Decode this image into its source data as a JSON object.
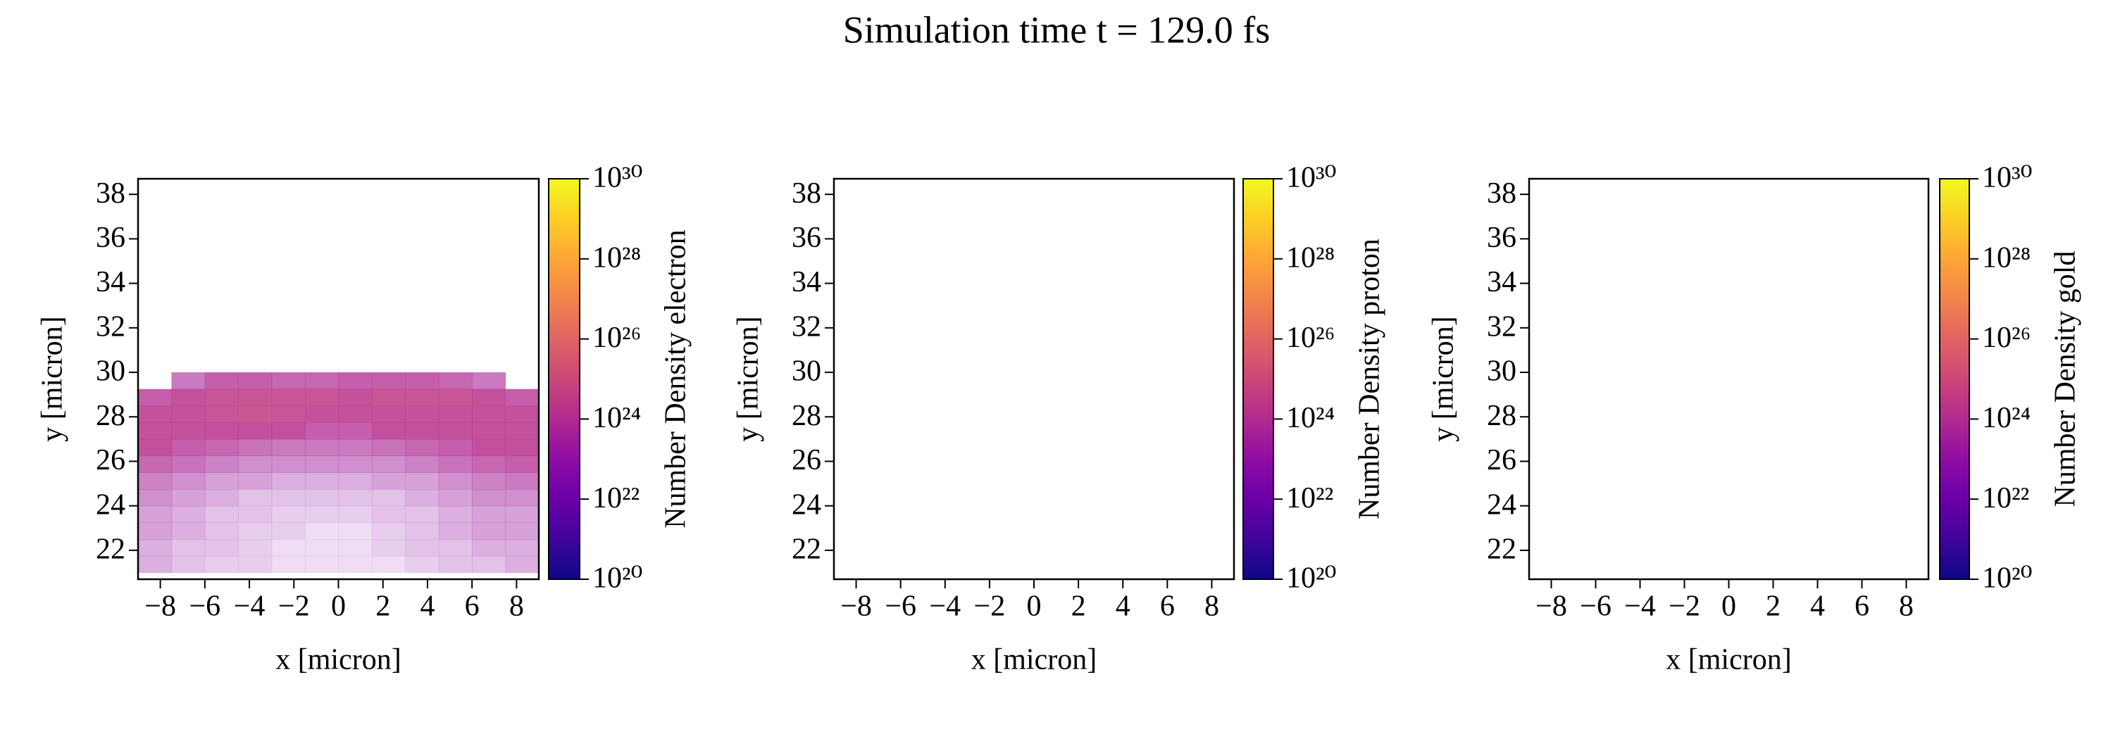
{
  "title": "Simulation time t = 129.0 fs",
  "chart_data": [
    {
      "type": "heatmap",
      "xlabel": "x [micron]",
      "ylabel": "y [micron]",
      "xlim": [
        -9,
        9
      ],
      "ylim": [
        20.7,
        38.7
      ],
      "xticks": [
        {
          "value": -8,
          "label": "−8"
        },
        {
          "value": -6,
          "label": "−6"
        },
        {
          "value": -4,
          "label": "−4"
        },
        {
          "value": -2,
          "label": "−2"
        },
        0,
        2,
        4,
        6,
        8
      ],
      "yticks": [
        22,
        24,
        26,
        28,
        30,
        32,
        34,
        36,
        38
      ],
      "colorbar": {
        "label": "Number Density electron",
        "scale": "log",
        "colormap": "plasma",
        "lim": [
          1e+20,
          1e+30
        ],
        "ticks": [
          {
            "value": 1e+20,
            "label": "10²⁰"
          },
          {
            "value": 1e+22,
            "label": "10²²"
          },
          {
            "value": 1e+24,
            "label": "10²⁴"
          },
          {
            "value": 1e+26,
            "label": "10²⁶"
          },
          {
            "value": 1e+28,
            "label": "10²⁸"
          },
          {
            "value": 1e+30,
            "label": "10³⁰"
          }
        ]
      },
      "xbins": [
        -9,
        -7.5,
        -6,
        -4.5,
        -3,
        -1.5,
        0,
        1.5,
        3,
        4.5,
        6,
        7.5,
        9
      ],
      "ybins": [
        21,
        21.75,
        22.5,
        23.25,
        24,
        24.75,
        25.5,
        26.25,
        27,
        27.75,
        28.5,
        29.25,
        30
      ],
      "z": [
        [
          1.5e+23,
          1e+23,
          8e+22,
          8e+22,
          6e+22,
          6e+22,
          6e+22,
          6e+22,
          8e+22,
          1e+23,
          1e+23,
          1.5e+23
        ],
        [
          1.5e+23,
          1e+23,
          1e+23,
          8e+22,
          6e+22,
          6e+22,
          6e+22,
          8e+22,
          1e+23,
          1e+23,
          1.5e+23,
          1.5e+23
        ],
        [
          2e+23,
          1.5e+23,
          1e+23,
          8e+22,
          8e+22,
          6e+22,
          6e+22,
          8e+22,
          1e+23,
          1.5e+23,
          2e+23,
          2e+23
        ],
        [
          2e+23,
          1.5e+23,
          1e+23,
          1e+23,
          8e+22,
          8e+22,
          8e+22,
          1e+23,
          1e+23,
          1.5e+23,
          2e+23,
          2e+23
        ],
        [
          3e+23,
          2e+23,
          1.5e+23,
          1e+23,
          1e+23,
          1e+23,
          1e+23,
          1e+23,
          1.5e+23,
          2e+23,
          3e+23,
          3e+23
        ],
        [
          4e+23,
          3e+23,
          2e+23,
          2e+23,
          1.5e+23,
          1.5e+23,
          1.5e+23,
          2e+23,
          2e+23,
          3e+23,
          4e+23,
          5e+23
        ],
        [
          8e+23,
          6e+23,
          4e+23,
          3e+23,
          3e+23,
          3e+23,
          3e+23,
          3e+23,
          4e+23,
          6e+23,
          8e+23,
          1e+24
        ],
        [
          1.5e+24,
          1e+24,
          8e+23,
          6e+23,
          5e+23,
          5e+23,
          5e+23,
          6e+23,
          8e+23,
          1e+24,
          1.5e+24,
          1.5e+24
        ],
        [
          2e+24,
          2e+24,
          1.5e+24,
          1.5e+24,
          1.5e+24,
          1e+24,
          1e+24,
          1.5e+24,
          1.5e+24,
          2e+24,
          2e+24,
          2e+24
        ],
        [
          2e+24,
          2e+24,
          3e+24,
          4e+24,
          3e+24,
          2e+24,
          2e+24,
          2e+24,
          2e+24,
          2e+24,
          2e+24,
          2e+24
        ],
        [
          1e+24,
          2e+24,
          3e+24,
          3e+24,
          3e+24,
          3e+24,
          2e+24,
          3e+24,
          3e+24,
          3e+24,
          2e+24,
          1e+24
        ],
        [
          null,
          5e+23,
          1e+24,
          1e+24,
          8e+23,
          8e+23,
          1e+24,
          1e+24,
          1e+24,
          8e+23,
          5e+23,
          null
        ]
      ]
    },
    {
      "type": "heatmap",
      "xlabel": "x [micron]",
      "ylabel": "y [micron]",
      "xlim": [
        -9,
        9
      ],
      "ylim": [
        20.7,
        38.7
      ],
      "xticks": [
        {
          "value": -8,
          "label": "−8"
        },
        {
          "value": -6,
          "label": "−6"
        },
        {
          "value": -4,
          "label": "−4"
        },
        {
          "value": -2,
          "label": "−2"
        },
        0,
        2,
        4,
        6,
        8
      ],
      "yticks": [
        22,
        24,
        26,
        28,
        30,
        32,
        34,
        36,
        38
      ],
      "colorbar": {
        "label": "Number Density proton",
        "scale": "log",
        "colormap": "plasma",
        "lim": [
          1e+20,
          1e+30
        ],
        "ticks": [
          {
            "value": 1e+20,
            "label": "10²⁰"
          },
          {
            "value": 1e+22,
            "label": "10²²"
          },
          {
            "value": 1e+24,
            "label": "10²⁴"
          },
          {
            "value": 1e+26,
            "label": "10²⁶"
          },
          {
            "value": 1e+28,
            "label": "10²⁸"
          },
          {
            "value": 1e+30,
            "label": "10³⁰"
          }
        ]
      }
    },
    {
      "type": "heatmap",
      "xlabel": "x [micron]",
      "ylabel": "y [micron]",
      "xlim": [
        -9,
        9
      ],
      "ylim": [
        20.7,
        38.7
      ],
      "xticks": [
        {
          "value": -8,
          "label": "−8"
        },
        {
          "value": -6,
          "label": "−6"
        },
        {
          "value": -4,
          "label": "−4"
        },
        {
          "value": -2,
          "label": "−2"
        },
        0,
        2,
        4,
        6,
        8
      ],
      "yticks": [
        22,
        24,
        26,
        28,
        30,
        32,
        34,
        36,
        38
      ],
      "colorbar": {
        "label": "Number Density gold",
        "scale": "log",
        "colormap": "plasma",
        "lim": [
          1e+20,
          1e+30
        ],
        "ticks": [
          {
            "value": 1e+20,
            "label": "10²⁰"
          },
          {
            "value": 1e+22,
            "label": "10²²"
          },
          {
            "value": 1e+24,
            "label": "10²⁴"
          },
          {
            "value": 1e+26,
            "label": "10²⁶"
          },
          {
            "value": 1e+28,
            "label": "10²⁸"
          },
          {
            "value": 1e+30,
            "label": "10³⁰"
          }
        ]
      }
    }
  ]
}
